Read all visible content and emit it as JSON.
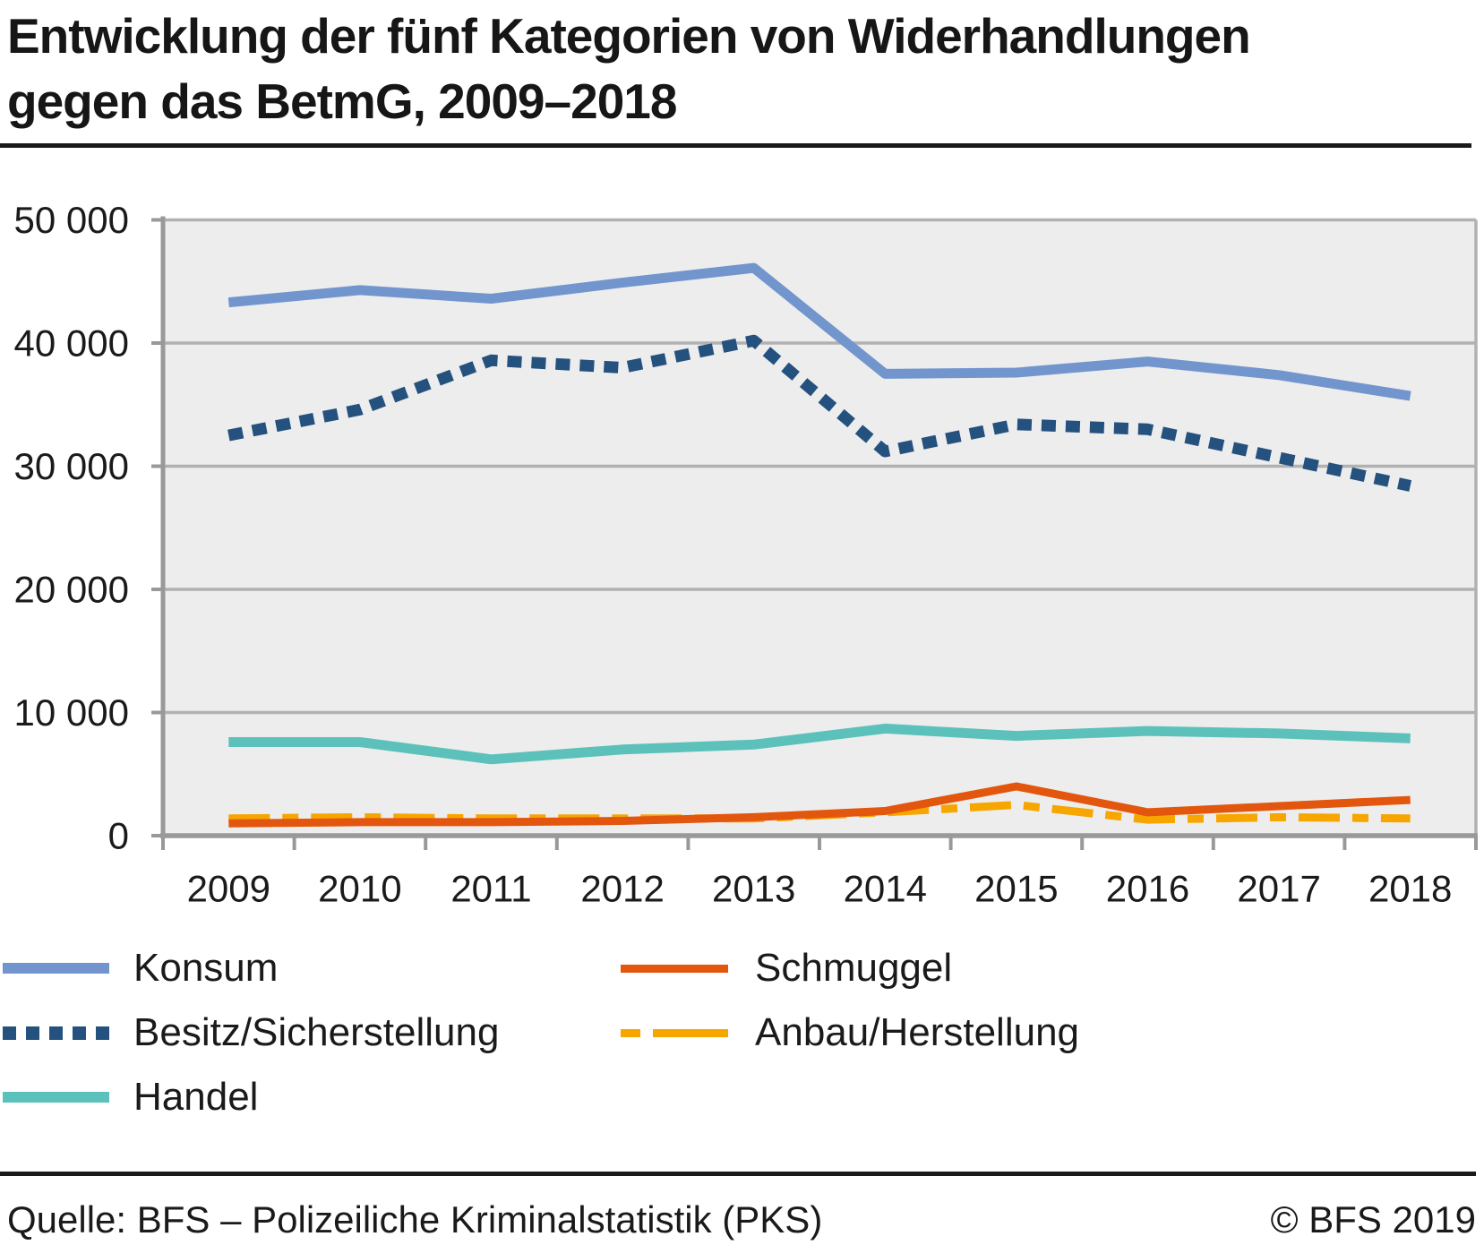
{
  "title_lines": [
    "Entwicklung der fünf Kategorien von Widerhandlungen",
    "gegen das BetmG, 2009–2018"
  ],
  "title": "Entwicklung der fünf Kategorien von Widerhandlungen gegen das BetmG, 2009–2018",
  "chart_data": {
    "type": "line",
    "categories": [
      "2009",
      "2010",
      "2011",
      "2012",
      "2013",
      "2014",
      "2015",
      "2016",
      "2017",
      "2018"
    ],
    "series": [
      {
        "name": "Konsum",
        "key": "konsum",
        "color": "#7295ce",
        "style": "solid",
        "values": [
          43300,
          44300,
          43600,
          44900,
          46100,
          37500,
          37600,
          38500,
          37400,
          35700
        ]
      },
      {
        "name": "Besitz/Sicherstellung",
        "key": "besitz",
        "color": "#25517f",
        "style": "dotted",
        "values": [
          32500,
          34600,
          38600,
          38000,
          40200,
          31200,
          33400,
          33000,
          30700,
          28400
        ]
      },
      {
        "name": "Handel",
        "key": "handel",
        "color": "#5cc1ba",
        "style": "solid",
        "values": [
          7600,
          7600,
          6200,
          7000,
          7400,
          8700,
          8100,
          8500,
          8300,
          7900
        ]
      },
      {
        "name": "Schmuggel",
        "key": "schmuggel",
        "color": "#e3560d",
        "style": "solid",
        "values": [
          1000,
          1100,
          1100,
          1200,
          1500,
          2000,
          4000,
          1900,
          2400,
          2900
        ]
      },
      {
        "name": "Anbau/Herstellung",
        "key": "anbau",
        "color": "#f7a600",
        "style": "dashed",
        "values": [
          1400,
          1500,
          1400,
          1400,
          1400,
          1900,
          2500,
          1300,
          1500,
          1400
        ]
      }
    ],
    "ylim": [
      0,
      50000
    ],
    "yticks": [
      {
        "value": 0,
        "label": "0"
      },
      {
        "value": 10000,
        "label": "10 000"
      },
      {
        "value": 20000,
        "label": "20 000"
      },
      {
        "value": 30000,
        "label": "30 000"
      },
      {
        "value": 40000,
        "label": "40 000"
      },
      {
        "value": 50000,
        "label": "50 000"
      }
    ],
    "xlabel": "",
    "ylabel": "",
    "grid": "horizontal",
    "legend_position": "bottom",
    "plot_bg": "#ededed",
    "grid_color": "#b1b1b1",
    "axis_color": "#999999",
    "label_color": "#1a1a1a"
  },
  "footer": {
    "source": "Quelle: BFS – Polizeiliche Kriminalstatistik (PKS)",
    "copyright": "© BFS 2019"
  }
}
